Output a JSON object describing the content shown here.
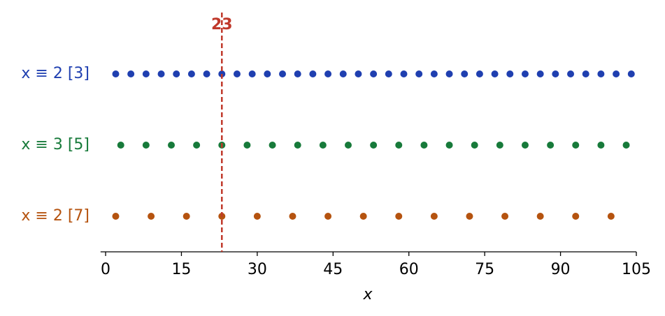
{
  "chart_data": {
    "type": "strip",
    "series": [
      {
        "name": "x ≡ 2 [3]",
        "color": "#1f3fb0",
        "x": [
          2,
          5,
          8,
          11,
          14,
          17,
          20,
          23,
          26,
          29,
          32,
          35,
          38,
          41,
          44,
          47,
          50,
          53,
          56,
          59,
          62,
          65,
          68,
          71,
          74,
          77,
          80,
          83,
          86,
          89,
          92,
          95,
          98,
          101,
          104
        ]
      },
      {
        "name": "x ≡ 3 [5]",
        "color": "#177a3a",
        "x": [
          3,
          8,
          13,
          18,
          23,
          28,
          33,
          38,
          43,
          48,
          53,
          58,
          63,
          68,
          73,
          78,
          83,
          88,
          93,
          98,
          103
        ]
      },
      {
        "name": "x ≡ 2 [7]",
        "color": "#b5530f",
        "x": [
          2,
          9,
          16,
          23,
          30,
          37,
          44,
          51,
          58,
          65,
          72,
          79,
          86,
          93,
          100
        ]
      }
    ],
    "annotation": {
      "x": 23,
      "color": "#c0392b"
    },
    "xlabel": "x",
    "xlim": [
      -1,
      105
    ],
    "xticks": [
      0,
      15,
      30,
      45,
      60,
      75,
      90,
      105
    ]
  }
}
